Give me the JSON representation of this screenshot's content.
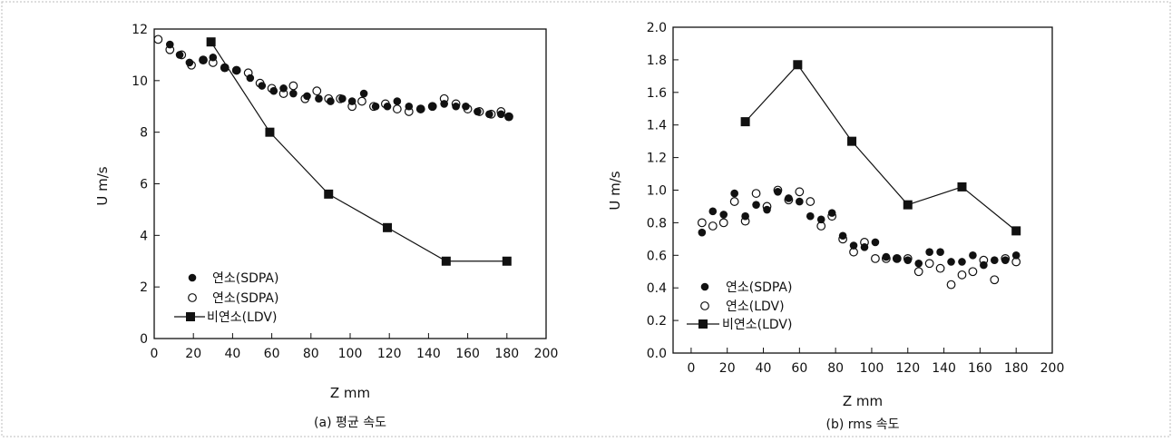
{
  "chart_data": [
    {
      "type": "scatter",
      "caption": "(a) 평균 속도",
      "xlabel": "Z mm",
      "ylabel": "U m/s",
      "xlim": [
        0,
        200
      ],
      "ylim": [
        0,
        12
      ],
      "xticks": [
        "0",
        "20",
        "40",
        "60",
        "80",
        "100",
        "120",
        "140",
        "160",
        "180",
        "200"
      ],
      "yticks": [
        "0",
        "2",
        "4",
        "6",
        "8",
        "10",
        "12"
      ],
      "legend_position": "bottom-left",
      "series": [
        {
          "name": "연소(SDPA)",
          "marker": "filled-circle",
          "x": [
            8,
            13,
            18,
            25,
            30,
            36,
            42,
            49,
            55,
            61,
            66,
            71,
            78,
            84,
            90,
            96,
            101,
            107,
            113,
            119,
            124,
            130,
            136,
            142,
            148,
            154,
            159,
            165,
            171,
            177,
            181
          ],
          "y": [
            11.4,
            11.0,
            10.7,
            10.8,
            10.9,
            10.5,
            10.4,
            10.1,
            9.8,
            9.6,
            9.7,
            9.5,
            9.4,
            9.3,
            9.2,
            9.3,
            9.2,
            9.5,
            9.0,
            9.0,
            9.2,
            9.0,
            8.9,
            9.0,
            9.1,
            9.0,
            9.0,
            8.8,
            8.7,
            8.7,
            8.6
          ]
        },
        {
          "name": "연소(SDPA)",
          "marker": "open-circle",
          "x": [
            2,
            8,
            14,
            19,
            25,
            30,
            36,
            42,
            48,
            54,
            60,
            66,
            71,
            77,
            83,
            89,
            95,
            101,
            106,
            112,
            118,
            124,
            130,
            136,
            142,
            148,
            154,
            160,
            166,
            172,
            177,
            181
          ],
          "y": [
            11.6,
            11.2,
            11.0,
            10.6,
            10.8,
            10.7,
            10.5,
            10.4,
            10.3,
            9.9,
            9.7,
            9.5,
            9.8,
            9.3,
            9.6,
            9.3,
            9.3,
            9.0,
            9.2,
            9.0,
            9.1,
            8.9,
            8.8,
            8.9,
            9.0,
            9.3,
            9.1,
            8.9,
            8.8,
            8.7,
            8.8,
            8.6
          ]
        },
        {
          "name": "비연소(LDV)",
          "marker": "filled-square-line",
          "x": [
            29,
            59,
            89,
            119,
            149,
            180
          ],
          "y": [
            11.5,
            8.0,
            5.6,
            4.3,
            3.0,
            3.0
          ]
        }
      ]
    },
    {
      "type": "scatter",
      "caption": "(b) rms 속도",
      "xlabel": "Z mm",
      "ylabel": "U m/s",
      "xlim": [
        -10,
        200
      ],
      "ylim": [
        0,
        2.0
      ],
      "xticks": [
        "0",
        "20",
        "40",
        "60",
        "80",
        "100",
        "120",
        "140",
        "160",
        "180",
        "200"
      ],
      "yticks": [
        "0.0",
        "0.2",
        "0.4",
        "0.6",
        "0.8",
        "1.0",
        "1.2",
        "1.4",
        "1.6",
        "1.8",
        "2.0"
      ],
      "legend_position": "bottom-left",
      "series": [
        {
          "name": "연소(SDPA)",
          "marker": "filled-circle",
          "x": [
            6,
            12,
            18,
            24,
            30,
            36,
            42,
            48,
            54,
            60,
            66,
            72,
            78,
            84,
            90,
            96,
            102,
            108,
            114,
            120,
            126,
            132,
            138,
            144,
            150,
            156,
            162,
            168,
            174,
            180
          ],
          "y": [
            0.74,
            0.87,
            0.85,
            0.98,
            0.84,
            0.91,
            0.88,
            0.99,
            0.95,
            0.93,
            0.84,
            0.82,
            0.86,
            0.72,
            0.66,
            0.65,
            0.68,
            0.59,
            0.58,
            0.57,
            0.55,
            0.62,
            0.62,
            0.56,
            0.56,
            0.6,
            0.54,
            0.57,
            0.57,
            0.6
          ]
        },
        {
          "name": "연소(LDV)",
          "marker": "open-circle",
          "x": [
            6,
            12,
            18,
            24,
            30,
            36,
            42,
            48,
            54,
            60,
            66,
            72,
            78,
            84,
            90,
            96,
            102,
            108,
            114,
            120,
            126,
            132,
            138,
            144,
            150,
            156,
            162,
            168,
            174,
            180
          ],
          "y": [
            0.8,
            0.78,
            0.8,
            0.93,
            0.81,
            0.98,
            0.9,
            1.0,
            0.94,
            0.99,
            0.93,
            0.78,
            0.84,
            0.7,
            0.62,
            0.68,
            0.58,
            0.58,
            0.58,
            0.58,
            0.5,
            0.55,
            0.52,
            0.42,
            0.48,
            0.5,
            0.57,
            0.45,
            0.58,
            0.56
          ]
        },
        {
          "name": "비연소(LDV)",
          "marker": "filled-square-line",
          "x": [
            30,
            59,
            89,
            120,
            150,
            180
          ],
          "y": [
            1.42,
            1.77,
            1.3,
            0.91,
            1.02,
            0.75
          ]
        }
      ]
    }
  ]
}
